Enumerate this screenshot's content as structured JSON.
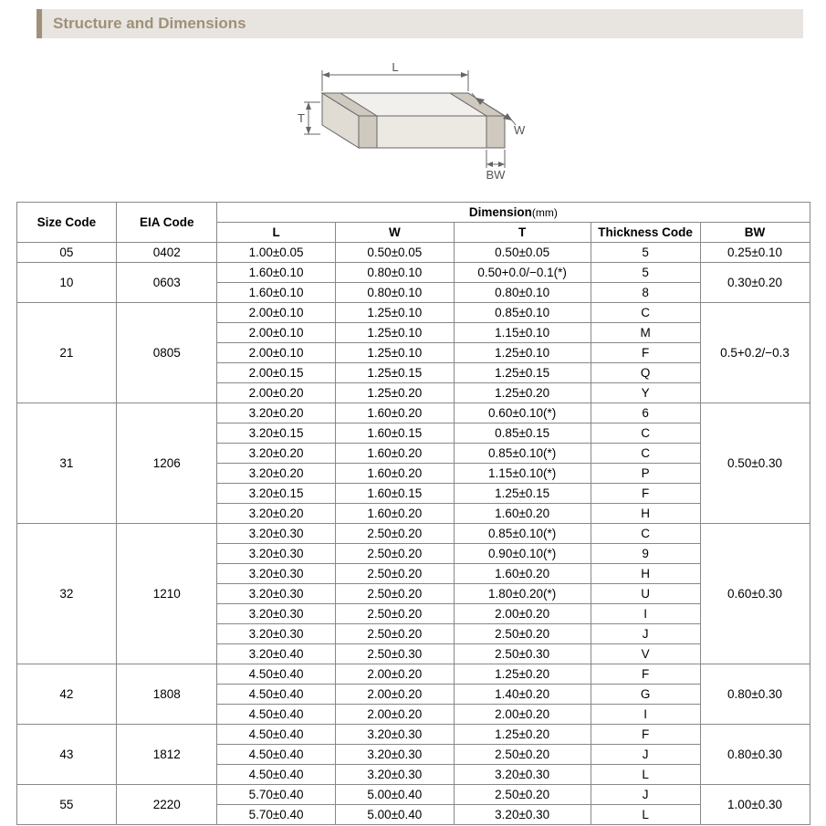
{
  "section_title": "Structure and Dimensions",
  "diagram": {
    "labels": {
      "L": "L",
      "W": "W",
      "T": "T",
      "BW": "BW"
    },
    "stroke": "#666666",
    "fill_top": "#f2f0ec",
    "fill_side": "#e0dcd4",
    "fill_front": "#ece9e3",
    "band_fill": "#cfc9bf"
  },
  "table": {
    "headers": {
      "size": "Size Code",
      "eia": "EIA Code",
      "dim": "Dimension",
      "dim_unit": "(mm)",
      "L": "L",
      "W": "W",
      "T": "T",
      "tc": "Thickness  Code",
      "BW": "BW"
    },
    "groups": [
      {
        "size": "05",
        "eia": "0402",
        "bw": "0.25±0.10",
        "rows": [
          {
            "L": "1.00±0.05",
            "W": "0.50±0.05",
            "T": "0.50±0.05",
            "tc": "5"
          }
        ]
      },
      {
        "size": "10",
        "eia": "0603",
        "bw": "0.30±0.20",
        "rows": [
          {
            "L": "1.60±0.10",
            "W": "0.80±0.10",
            "T": "0.50+0.0/−0.1(*)",
            "tc": "5"
          },
          {
            "L": "1.60±0.10",
            "W": "0.80±0.10",
            "T": "0.80±0.10",
            "tc": "8"
          }
        ]
      },
      {
        "size": "21",
        "eia": "0805",
        "bw": "0.5+0.2/−0.3",
        "rows": [
          {
            "L": "2.00±0.10",
            "W": "1.25±0.10",
            "T": "0.85±0.10",
            "tc": "C"
          },
          {
            "L": "2.00±0.10",
            "W": "1.25±0.10",
            "T": "1.15±0.10",
            "tc": "M"
          },
          {
            "L": "2.00±0.10",
            "W": "1.25±0.10",
            "T": "1.25±0.10",
            "tc": "F"
          },
          {
            "L": "2.00±0.15",
            "W": "1.25±0.15",
            "T": "1.25±0.15",
            "tc": "Q"
          },
          {
            "L": "2.00±0.20",
            "W": "1.25±0.20",
            "T": "1.25±0.20",
            "tc": "Y"
          }
        ]
      },
      {
        "size": "31",
        "eia": "1206",
        "bw": "0.50±0.30",
        "rows": [
          {
            "L": "3.20±0.20",
            "W": "1.60±0.20",
            "T": "0.60±0.10(*)",
            "tc": "6"
          },
          {
            "L": "3.20±0.15",
            "W": "1.60±0.15",
            "T": "0.85±0.15",
            "tc": "C"
          },
          {
            "L": "3.20±0.20",
            "W": "1.60±0.20",
            "T": "0.85±0.10(*)",
            "tc": "C"
          },
          {
            "L": "3.20±0.20",
            "W": "1.60±0.20",
            "T": "1.15±0.10(*)",
            "tc": "P"
          },
          {
            "L": "3.20±0.15",
            "W": "1.60±0.15",
            "T": "1.25±0.15",
            "tc": "F"
          },
          {
            "L": "3.20±0.20",
            "W": "1.60±0.20",
            "T": "1.60±0.20",
            "tc": "H"
          }
        ]
      },
      {
        "size": "32",
        "eia": "1210",
        "bw": "0.60±0.30",
        "rows": [
          {
            "L": "3.20±0.30",
            "W": "2.50±0.20",
            "T": "0.85±0.10(*)",
            "tc": "C"
          },
          {
            "L": "3.20±0.30",
            "W": "2.50±0.20",
            "T": "0.90±0.10(*)",
            "tc": "9"
          },
          {
            "L": "3.20±0.30",
            "W": "2.50±0.20",
            "T": "1.60±0.20",
            "tc": "H"
          },
          {
            "L": "3.20±0.30",
            "W": "2.50±0.20",
            "T": "1.80±0.20(*)",
            "tc": "U"
          },
          {
            "L": "3.20±0.30",
            "W": "2.50±0.20",
            "T": "2.00±0.20",
            "tc": "I"
          },
          {
            "L": "3.20±0.30",
            "W": "2.50±0.20",
            "T": "2.50±0.20",
            "tc": "J"
          },
          {
            "L": "3.20±0.40",
            "W": "2.50±0.30",
            "T": "2.50±0.30",
            "tc": "V"
          }
        ]
      },
      {
        "size": "42",
        "eia": "1808",
        "bw": "0.80±0.30",
        "rows": [
          {
            "L": "4.50±0.40",
            "W": "2.00±0.20",
            "T": "1.25±0.20",
            "tc": "F"
          },
          {
            "L": "4.50±0.40",
            "W": "2.00±0.20",
            "T": "1.40±0.20",
            "tc": "G"
          },
          {
            "L": "4.50±0.40",
            "W": "2.00±0.20",
            "T": "2.00±0.20",
            "tc": "I"
          }
        ]
      },
      {
        "size": "43",
        "eia": "1812",
        "bw": "0.80±0.30",
        "rows": [
          {
            "L": "4.50±0.40",
            "W": "3.20±0.30",
            "T": "1.25±0.20",
            "tc": "F"
          },
          {
            "L": "4.50±0.40",
            "W": "3.20±0.30",
            "T": "2.50±0.20",
            "tc": "J"
          },
          {
            "L": "4.50±0.40",
            "W": "3.20±0.30",
            "T": "3.20±0.30",
            "tc": "L"
          }
        ]
      },
      {
        "size": "55",
        "eia": "2220",
        "bw": "1.00±0.30",
        "rows": [
          {
            "L": "5.70±0.40",
            "W": "5.00±0.40",
            "T": "2.50±0.20",
            "tc": "J"
          },
          {
            "L": "5.70±0.40",
            "W": "5.00±0.40",
            "T": "3.20±0.30",
            "tc": "L"
          }
        ]
      }
    ]
  }
}
